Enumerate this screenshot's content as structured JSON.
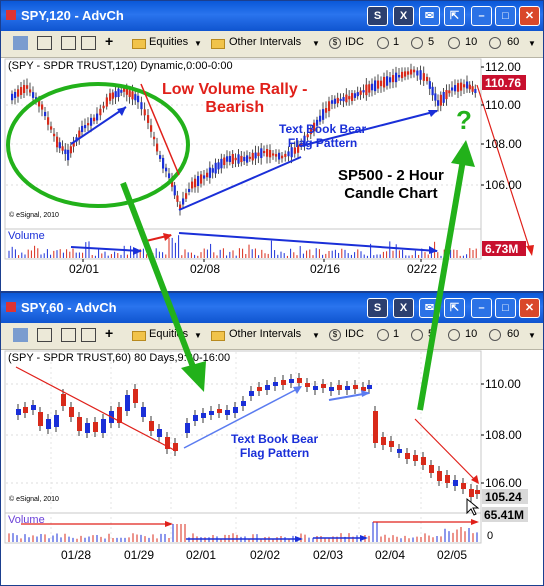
{
  "window1": {
    "title": "SPY,120 - AdvCh",
    "toolbar": {
      "equities": "Equities",
      "other_intervals": "Other Intervals",
      "idc": "IDC",
      "intervals": [
        "1",
        "5",
        "10",
        "60"
      ]
    },
    "header_text": "(SPY - SPDR TRUST,120) Dynamic,0:00-0:00",
    "annotation_main": "Low Volume Rally -\nBearish",
    "annotation_flag": "Text Book Bear\nFlag Pattern",
    "annotation_chart": "SP500 - 2 Hour\nCandle Chart",
    "question_mark": "?",
    "copyright": "© eSignal, 2010",
    "volume_label": "Volume",
    "price_labels": [
      "112.00",
      "110.00",
      "108.00",
      "106.00"
    ],
    "last_price": "110.76",
    "volume_value": "6.73M",
    "date_labels": [
      "02/01",
      "02/08",
      "02/16",
      "02/22"
    ]
  },
  "window2": {
    "title": "SPY,60 - AdvCh",
    "toolbar": {
      "equities": "Equities",
      "other_intervals": "Other Intervals",
      "idc": "IDC",
      "intervals": [
        "1",
        "5",
        "10",
        "60"
      ]
    },
    "header_text": "(SPY - SPDR TRUST,60) 80 Days,9:30-16:00",
    "annotation_flag": "Text Book Bear\nFlag Pattern",
    "copyright": "© eSignal, 2010",
    "volume_label": "Volume",
    "price_labels": [
      "110.00",
      "108.00",
      "106.00"
    ],
    "last_price": "105.24",
    "volume_value": "65.41M",
    "volume_zero": "0",
    "date_labels": [
      "01/28",
      "01/29",
      "02/01",
      "02/02",
      "02/03",
      "02/04",
      "02/05"
    ]
  },
  "colors": {
    "title_blue": "#0a58d8",
    "annotation_red": "#e0201a",
    "annotation_blue": "#1a2fd8",
    "arrow_green": "#22b11a",
    "up_candle": "#1a2fd8",
    "down_candle": "#d82a1a",
    "price_tag": "#c8102e"
  },
  "icons": [
    "restore-icon",
    "x-icon",
    "bell-icon",
    "export-icon",
    "minimize-icon",
    "maximize-icon",
    "close-icon",
    "link-icon",
    "copy-icon",
    "crosshair-icon"
  ]
}
